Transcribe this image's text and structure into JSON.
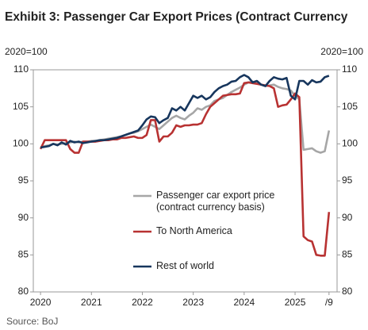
{
  "chart_data": {
    "type": "line",
    "title": "Exhibit 3: Passenger Car Export Prices (Contract Currency",
    "y_label": "2020=100",
    "y2_label": "2020=100",
    "source": "Source: BoJ",
    "x": [
      0,
      1,
      2,
      3,
      4,
      5,
      6,
      7,
      8,
      9,
      10,
      11,
      12,
      13,
      14,
      15,
      16,
      17,
      18,
      19,
      20,
      21,
      22,
      23,
      24,
      25,
      26,
      27,
      28,
      29,
      30,
      31,
      32,
      33,
      34,
      35,
      36,
      37,
      38,
      39,
      40,
      41,
      42,
      43,
      44,
      45,
      46,
      47,
      48,
      49,
      50,
      51,
      52,
      53,
      54,
      55,
      56,
      57,
      58,
      59,
      60,
      61,
      62,
      63,
      64,
      65,
      66,
      67,
      68
    ],
    "xlim": [
      -1.7,
      69.9
    ],
    "xticks": [
      {
        "value": 0,
        "label": "2020"
      },
      {
        "value": 12,
        "label": "2021"
      },
      {
        "value": 24,
        "label": "2022"
      },
      {
        "value": 36,
        "label": "2023"
      },
      {
        "value": 48,
        "label": "2024"
      },
      {
        "value": 60,
        "label": "2025"
      },
      {
        "value": 68,
        "label": "/9"
      }
    ],
    "ylim": [
      80,
      110
    ],
    "yticks": [
      80,
      85,
      90,
      95,
      100,
      105,
      110
    ],
    "y2lim": [
      80,
      110
    ],
    "y2ticks": [
      80,
      85,
      90,
      95,
      100,
      105,
      110
    ],
    "grid": false,
    "series": [
      {
        "name": "Passenger car export price (contract currency basis)",
        "color": "#a6a6a6",
        "values": [
          99.5,
          99.7,
          99.8,
          100,
          99.9,
          100,
          100.1,
          100.2,
          100.3,
          100.2,
          100.3,
          100.3,
          100.4,
          100.4,
          100.5,
          100.6,
          100.7,
          100.8,
          100.9,
          101,
          101.2,
          101.4,
          101.5,
          101.7,
          102,
          102.3,
          102.6,
          102.3,
          102,
          102.5,
          103,
          103.5,
          103.8,
          103.5,
          103.3,
          103.8,
          104.2,
          104.8,
          104.6,
          105,
          105.2,
          105.8,
          106,
          106.2,
          106.6,
          107,
          107.3,
          107.6,
          108,
          108.3,
          108.4,
          108.2,
          108,
          107.8,
          107.9,
          108,
          107.7,
          107.5,
          107.4,
          107.2,
          106.5,
          106,
          99.2,
          99.3,
          99.4,
          99,
          98.8,
          99,
          101.8
        ]
      },
      {
        "name": "To North America",
        "color": "#b83232",
        "values": [
          99.3,
          100.5,
          100.5,
          100.5,
          100.5,
          100.5,
          100.5,
          99.3,
          98.8,
          98.8,
          100.3,
          100.3,
          100.3,
          100.3,
          100.4,
          100.5,
          100.5,
          100.6,
          100.6,
          100.8,
          100.8,
          100.9,
          101,
          100.8,
          100.8,
          101.2,
          103.2,
          103.2,
          100.3,
          101,
          101,
          101.5,
          102.5,
          102.3,
          102.5,
          102.5,
          102.6,
          102.6,
          102.8,
          104,
          105,
          105.5,
          106,
          106.5,
          106.6,
          106.7,
          106.7,
          106.8,
          108.2,
          108.3,
          108.2,
          108.1,
          108,
          107.9,
          107.8,
          107.5,
          105,
          105.2,
          105.3,
          106,
          106.8,
          106.3,
          87.5,
          87,
          86.8,
          85,
          84.9,
          84.9,
          90.8
        ]
      },
      {
        "name": "Rest of world",
        "color": "#17365d",
        "values": [
          99.5,
          99.6,
          99.7,
          100,
          99.8,
          100.2,
          99.9,
          100.4,
          100.2,
          100.3,
          100.1,
          100.2,
          100.3,
          100.4,
          100.5,
          100.5,
          100.6,
          100.7,
          100.8,
          101,
          101.2,
          101.4,
          101.6,
          101.8,
          102.5,
          103.3,
          103.7,
          103.6,
          102.8,
          103.2,
          103.5,
          104.8,
          104.5,
          105,
          104.5,
          105.5,
          106.5,
          106.2,
          106.5,
          106,
          106.3,
          107,
          107.5,
          107.8,
          108,
          108.4,
          108.5,
          109,
          109.3,
          109,
          108.3,
          108.5,
          108,
          107.8,
          108.5,
          109,
          108.8,
          108.7,
          108.9,
          106.5,
          106,
          108.5,
          108.5,
          108,
          108.6,
          108.3,
          108.4,
          109,
          109.2
        ]
      }
    ]
  }
}
